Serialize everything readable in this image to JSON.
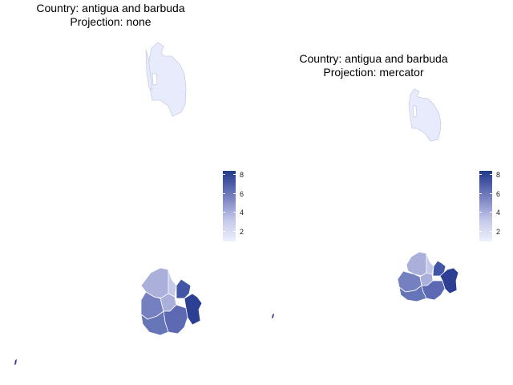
{
  "panels": [
    {
      "title_line1": "Country: antigua and barbuda",
      "title_line2": "Projection: none"
    },
    {
      "title_line1": "Country: antigua and barbuda",
      "title_line2": "Projection: mercator"
    }
  ],
  "legend": {
    "labels": [
      "8",
      "6",
      "4",
      "2"
    ],
    "color_low": "#eef0fb",
    "color_high": "#22398c",
    "ticks": [
      8,
      6,
      4,
      2
    ],
    "range": [
      1,
      8.2
    ]
  },
  "regions": {
    "barbuda": {
      "value": 1,
      "color": "#e8ebfb"
    },
    "antigua_parishes": [
      {
        "value": 3.5,
        "color": "#aab0da"
      },
      {
        "value": 2.5,
        "color": "#c4c9ea"
      },
      {
        "value": 5.5,
        "color": "#7480c0"
      },
      {
        "value": 5.0,
        "color": "#6f7bbd"
      },
      {
        "value": 7.0,
        "color": "#4356a6"
      },
      {
        "value": 8.0,
        "color": "#2c3f93"
      },
      {
        "value": 6.0,
        "color": "#5d6ab3"
      },
      {
        "value": 6.0,
        "color": "#6674b8"
      }
    ],
    "redonda": {
      "color": "#2c3f93"
    }
  }
}
